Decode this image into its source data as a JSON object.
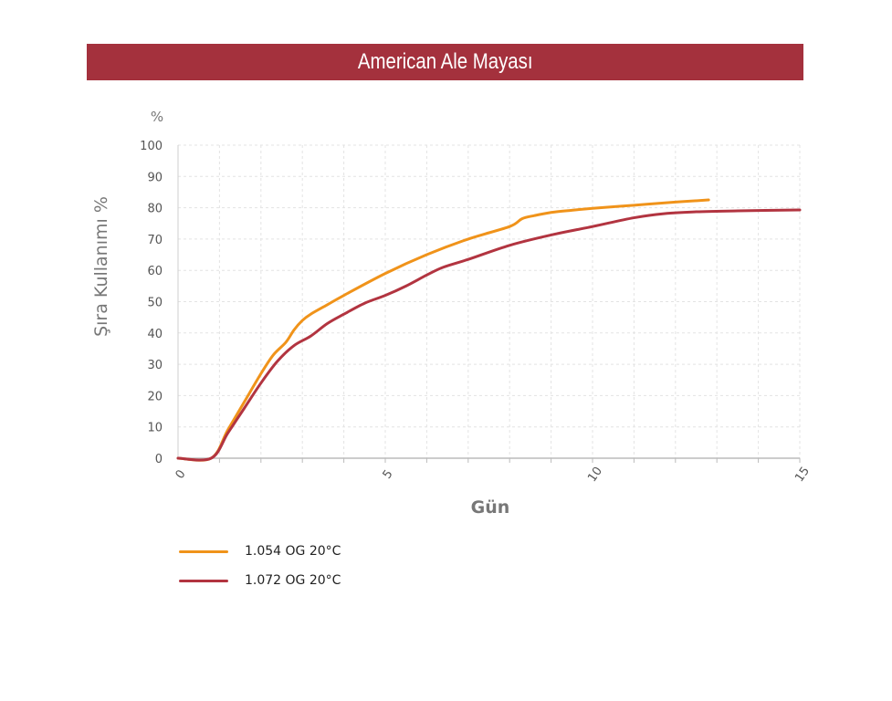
{
  "header": {
    "title": "American Ale Mayası"
  },
  "chart_data": {
    "type": "line",
    "ylabel": "Şıra Kullanımı %",
    "yunit": "%",
    "xlabel": "Gün",
    "xlim": [
      0,
      15
    ],
    "ylim": [
      0,
      100
    ],
    "xticks": [
      0,
      5,
      10,
      15
    ],
    "yticks": [
      0,
      10,
      20,
      30,
      40,
      50,
      60,
      70,
      80,
      90,
      100
    ],
    "grid": true,
    "legend_position": "bottom-left",
    "series": [
      {
        "name": "1.054 OG 20°C",
        "color": "#f0931a",
        "x": [
          0,
          0.8,
          1.2,
          1.6,
          2.0,
          2.3,
          2.6,
          2.8,
          3.0,
          3.2,
          3.6,
          4.0,
          5.0,
          6.0,
          7.0,
          8.0,
          8.3,
          8.6,
          9.0,
          9.5,
          10.0,
          11.0,
          12.0,
          12.8
        ],
        "y": [
          0,
          0,
          9,
          18,
          27,
          33,
          37,
          41,
          44,
          46,
          49,
          52,
          59,
          65,
          70,
          74,
          76.5,
          77.5,
          78.5,
          79.2,
          79.8,
          80.8,
          81.8,
          82.5
        ]
      },
      {
        "name": "1.072 OG 20°C",
        "color": "#b23440",
        "x": [
          0,
          0.8,
          1.2,
          1.6,
          2.0,
          2.4,
          2.8,
          3.2,
          3.6,
          4.0,
          4.5,
          5.0,
          5.5,
          6.0,
          6.4,
          7.0,
          8.0,
          9.0,
          10.0,
          11.0,
          11.8,
          12.5,
          13.5,
          15.0
        ],
        "y": [
          0,
          0,
          8,
          16,
          24,
          31,
          36,
          39,
          43,
          46,
          49.5,
          52,
          55,
          58.5,
          61,
          63.5,
          68,
          71.3,
          74,
          76.8,
          78.2,
          78.7,
          79.0,
          79.3
        ]
      }
    ]
  }
}
